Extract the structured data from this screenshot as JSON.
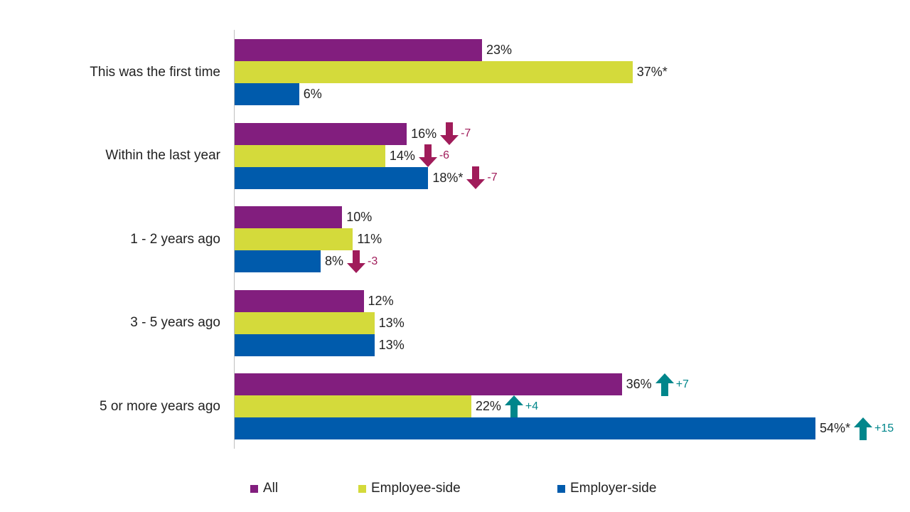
{
  "chart_data": {
    "type": "bar",
    "orientation": "horizontal",
    "categories": [
      "This was the first time",
      "Within the last year",
      "1 - 2 years ago",
      "3 - 5 years ago",
      "5 or more years ago"
    ],
    "series": [
      {
        "name": "All",
        "color": "#821e7e",
        "values": [
          23,
          16,
          10,
          12,
          36
        ],
        "labels": [
          "23%",
          "16%",
          "10%",
          "12%",
          "36%"
        ],
        "changes": [
          null,
          "-7",
          null,
          null,
          "+7"
        ]
      },
      {
        "name": "Employee-side",
        "color": "#d4da3b",
        "values": [
          37,
          14,
          11,
          13,
          22
        ],
        "labels": [
          "37%*",
          "14%",
          "11%",
          "13%",
          "22%"
        ],
        "changes": [
          null,
          "-6",
          null,
          null,
          "+4"
        ]
      },
      {
        "name": "Employer-side",
        "color": "#005bac",
        "values": [
          6,
          18,
          8,
          13,
          54
        ],
        "labels": [
          "6%",
          "18%*",
          "8%",
          "13%",
          "54%*"
        ],
        "changes": [
          null,
          "-7",
          "-3",
          null,
          "+15"
        ]
      }
    ],
    "xlim": [
      0,
      54
    ],
    "grid": false,
    "legend": "bottom",
    "colors": {
      "decrease": "#a01c5a",
      "increase": "#00868b"
    }
  }
}
